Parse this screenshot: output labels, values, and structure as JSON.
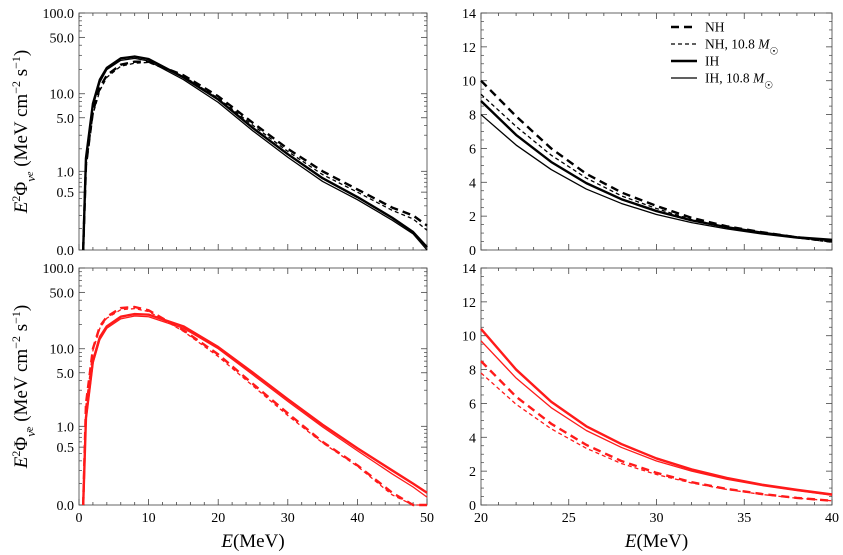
{
  "colors": {
    "nue": "#000000",
    "nuebar": "#ff1a1a"
  },
  "chart_data": [
    {
      "id": "nue-full",
      "type": "line",
      "ylabel": "E²Φ_νe (MeV cm⁻² s⁻¹)",
      "yscale": "log",
      "xlim": [
        0,
        50
      ],
      "ylim": [
        0,
        100
      ],
      "xticks": [
        0,
        10,
        20,
        30,
        40,
        50
      ],
      "xtick_labels": [
        "",
        "",
        "",
        "",
        "",
        ""
      ],
      "yticks": [
        0.0,
        0.5,
        1.0,
        5.0,
        10.0,
        50.0,
        100.0
      ],
      "ytick_labels": [
        "0.0",
        "0.5",
        "1.0",
        "5.0",
        "10.0",
        "50.0",
        "100.0"
      ],
      "series": [
        {
          "name": "NH",
          "style": "dashed-thick",
          "x": [
            0.6,
            1,
            2,
            3,
            4,
            6,
            8,
            10,
            15,
            20,
            25,
            30,
            35,
            40,
            45,
            48,
            50
          ],
          "y": [
            0,
            1.2,
            6,
            12,
            17,
            23,
            25,
            25,
            17,
            9.3,
            4.3,
            2.0,
            1.0,
            0.55,
            0.28,
            0.2,
            0.12
          ]
        },
        {
          "name": "NH, 10.8 M☉",
          "style": "dashed-thin",
          "x": [
            0.6,
            1,
            2,
            3,
            4,
            6,
            8,
            10,
            15,
            20,
            25,
            30,
            35,
            40,
            45,
            48,
            50
          ],
          "y": [
            0,
            1.1,
            5.5,
            11,
            16,
            22,
            24,
            24.5,
            16.5,
            8.8,
            4.0,
            1.85,
            0.9,
            0.5,
            0.25,
            0.17,
            0.09
          ]
        },
        {
          "name": "IH",
          "style": "solid-thick",
          "x": [
            0.6,
            1,
            2,
            3,
            4,
            6,
            8,
            10,
            15,
            20,
            25,
            30,
            35,
            40,
            45,
            48,
            50
          ],
          "y": [
            0,
            1.5,
            7.5,
            15,
            21,
            27.5,
            29,
            27,
            16,
            8.5,
            3.7,
            1.7,
            0.8,
            0.42,
            0.18,
            0.08,
            0.01
          ]
        },
        {
          "name": "IH, 10.8 M☉",
          "style": "solid-thin",
          "x": [
            0.6,
            1,
            2,
            3,
            4,
            6,
            8,
            10,
            15,
            20,
            25,
            30,
            35,
            40,
            45,
            48,
            50
          ],
          "y": [
            0,
            1.4,
            7,
            14,
            20,
            26,
            27.5,
            25.5,
            15,
            7.8,
            3.4,
            1.55,
            0.72,
            0.38,
            0.16,
            0.07,
            0.0
          ]
        }
      ]
    },
    {
      "id": "nue-zoom",
      "type": "line",
      "xlim": [
        20,
        40
      ],
      "ylim": [
        0,
        14
      ],
      "xticks": [
        20,
        25,
        30,
        35,
        40
      ],
      "xtick_labels": [
        "",
        "",
        "",
        "",
        ""
      ],
      "yticks": [
        0,
        2,
        4,
        6,
        8,
        10,
        12,
        14
      ],
      "ytick_labels": [
        "0",
        "2",
        "4",
        "6",
        "8",
        "10",
        "12",
        "14"
      ],
      "series": [
        {
          "name": "NH",
          "style": "dashed-thick",
          "x": [
            20,
            22,
            24,
            26,
            28,
            30,
            32,
            34,
            36,
            38,
            40
          ],
          "y": [
            10.0,
            7.9,
            6.0,
            4.5,
            3.4,
            2.6,
            1.9,
            1.4,
            1.05,
            0.75,
            0.5
          ]
        },
        {
          "name": "NH, 10.8 M☉",
          "style": "dashed-thin",
          "x": [
            20,
            22,
            24,
            26,
            28,
            30,
            32,
            34,
            36,
            38,
            40
          ],
          "y": [
            9.2,
            7.3,
            5.6,
            4.25,
            3.2,
            2.45,
            1.8,
            1.35,
            1.0,
            0.72,
            0.45
          ]
        },
        {
          "name": "IH",
          "style": "solid-thick",
          "x": [
            20,
            22,
            24,
            26,
            28,
            30,
            32,
            34,
            36,
            38,
            40
          ],
          "y": [
            8.8,
            6.8,
            5.2,
            3.95,
            3.0,
            2.3,
            1.75,
            1.35,
            1.02,
            0.75,
            0.6
          ]
        },
        {
          "name": "IH, 10.8 M☉",
          "style": "solid-thin",
          "x": [
            20,
            22,
            24,
            26,
            28,
            30,
            32,
            34,
            36,
            38,
            40
          ],
          "y": [
            8.0,
            6.2,
            4.75,
            3.6,
            2.75,
            2.1,
            1.62,
            1.25,
            0.95,
            0.7,
            0.55
          ]
        }
      ],
      "legend": {
        "position": "top-right",
        "entries": [
          {
            "label": "NH",
            "style": "dashed-thick"
          },
          {
            "label": "NH,  10.8 M☉",
            "style": "dashed-thin"
          },
          {
            "label": "IH",
            "style": "solid-thick"
          },
          {
            "label": "IH,  10.8 M☉",
            "style": "solid-thin"
          }
        ]
      }
    },
    {
      "id": "nuebar-full",
      "type": "line",
      "ylabel": "E²Φ_ν̄e (MeV cm⁻² s⁻¹)",
      "xlabel": "E(MeV)",
      "yscale": "log",
      "xlim": [
        0,
        50
      ],
      "ylim": [
        0,
        100
      ],
      "xticks": [
        0,
        10,
        20,
        30,
        40,
        50
      ],
      "xtick_labels": [
        "0",
        "10",
        "20",
        "30",
        "40",
        "50"
      ],
      "yticks": [
        0.0,
        0.5,
        1.0,
        5.0,
        10.0,
        50.0,
        100.0
      ],
      "ytick_labels": [
        "0.0",
        "0.5",
        "1.0",
        "5.0",
        "10.0",
        "50.0",
        "100.0"
      ],
      "series": [
        {
          "name": "NH",
          "style": "dashed-thick",
          "x": [
            0.6,
            1,
            2,
            3,
            4,
            6,
            8,
            10,
            15,
            20,
            25,
            30,
            35,
            40,
            45,
            48,
            50
          ],
          "y": [
            0,
            2,
            10,
            19,
            25,
            32,
            33,
            30,
            17,
            8.5,
            3.6,
            1.5,
            0.6,
            0.25,
            0.05,
            0.0,
            0.0
          ]
        },
        {
          "name": "NH, 10.8 M☉",
          "style": "dashed-thin",
          "x": [
            0.6,
            1,
            2,
            3,
            4,
            6,
            8,
            10,
            15,
            20,
            25,
            30,
            35,
            40,
            45,
            48,
            50
          ],
          "y": [
            0,
            1.9,
            9.5,
            18,
            24,
            30.5,
            31.5,
            29,
            16.5,
            8.0,
            3.4,
            1.4,
            0.58,
            0.24,
            0.04,
            0.0,
            0.0
          ]
        },
        {
          "name": "IH",
          "style": "solid-thick",
          "x": [
            0.6,
            1,
            2,
            3,
            4,
            6,
            8,
            10,
            15,
            20,
            25,
            30,
            35,
            40,
            45,
            48,
            50
          ],
          "y": [
            0,
            1.3,
            7,
            14,
            19,
            25,
            27,
            26.5,
            19,
            10.5,
            5.0,
            2.3,
            1.05,
            0.48,
            0.2,
            0.1,
            0.05
          ]
        },
        {
          "name": "IH, 10.8 M☉",
          "style": "solid-thin",
          "x": [
            0.6,
            1,
            2,
            3,
            4,
            6,
            8,
            10,
            15,
            20,
            25,
            30,
            35,
            40,
            45,
            48,
            50
          ],
          "y": [
            0,
            1.2,
            6.5,
            13,
            18,
            23.5,
            25.5,
            25,
            18,
            10,
            4.7,
            2.15,
            0.98,
            0.44,
            0.17,
            0.08,
            0.03
          ]
        }
      ]
    },
    {
      "id": "nuebar-zoom",
      "type": "line",
      "xlabel": "E(MeV)",
      "xlim": [
        20,
        40
      ],
      "ylim": [
        0,
        14
      ],
      "xticks": [
        20,
        25,
        30,
        35,
        40
      ],
      "xtick_labels": [
        "20",
        "25",
        "30",
        "35",
        "40"
      ],
      "yticks": [
        0,
        2,
        4,
        6,
        8,
        10,
        12,
        14
      ],
      "ytick_labels": [
        "0",
        "2",
        "4",
        "6",
        "8",
        "10",
        "12",
        "14"
      ],
      "series": [
        {
          "name": "NH",
          "style": "dashed-thick",
          "x": [
            20,
            22,
            24,
            26,
            28,
            30,
            32,
            34,
            36,
            38,
            40
          ],
          "y": [
            8.5,
            6.4,
            4.8,
            3.55,
            2.6,
            1.9,
            1.35,
            0.95,
            0.65,
            0.42,
            0.25
          ]
        },
        {
          "name": "NH, 10.8 M☉",
          "style": "dashed-thin",
          "x": [
            20,
            22,
            24,
            26,
            28,
            30,
            32,
            34,
            36,
            38,
            40
          ],
          "y": [
            7.8,
            5.95,
            4.5,
            3.35,
            2.45,
            1.8,
            1.3,
            0.92,
            0.62,
            0.4,
            0.25
          ]
        },
        {
          "name": "IH",
          "style": "solid-thick",
          "x": [
            20,
            22,
            24,
            26,
            28,
            30,
            32,
            34,
            36,
            38,
            40
          ],
          "y": [
            10.4,
            8.0,
            6.1,
            4.65,
            3.6,
            2.75,
            2.1,
            1.6,
            1.2,
            0.9,
            0.62
          ]
        },
        {
          "name": "IH, 10.8 M☉",
          "style": "solid-thin",
          "x": [
            20,
            22,
            24,
            26,
            28,
            30,
            32,
            34,
            36,
            38,
            40
          ],
          "y": [
            9.7,
            7.5,
            5.75,
            4.4,
            3.4,
            2.6,
            2.0,
            1.52,
            1.15,
            0.85,
            0.58
          ]
        }
      ]
    }
  ]
}
